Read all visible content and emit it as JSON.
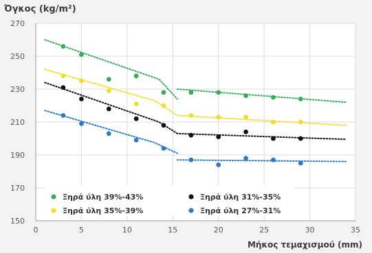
{
  "chart_data": {
    "type": "scatter",
    "title": "Όγκος (kg/m²)",
    "xlabel": "Μήκος τεμαχισμού (mm)",
    "ylabel": "",
    "xlim": [
      0,
      35
    ],
    "ylim": [
      150,
      270
    ],
    "xticks": [
      0,
      5,
      10,
      15,
      20,
      25,
      30,
      35
    ],
    "yticks": [
      150,
      170,
      190,
      210,
      230,
      250,
      270
    ],
    "grid": true,
    "legend": "bottom-left",
    "series": [
      {
        "name": "Ξηρά ύλη 39%-43%",
        "color": "#3aab5a",
        "x": [
          3,
          5,
          8,
          11,
          14,
          17,
          20,
          23,
          26,
          29
        ],
        "y": [
          256,
          251,
          236,
          238,
          228,
          228,
          228,
          226,
          225,
          224
        ],
        "trend": [
          [
            [
              1,
              260
            ],
            [
              13.5,
              236
            ],
            [
              15.5,
              224
            ]
          ],
          [
            [
              15.5,
              230
            ],
            [
              34,
              222
            ]
          ]
        ]
      },
      {
        "name": "Ξηρά ύλη 35%-39%",
        "color": "#f2dd2b",
        "x": [
          3,
          5,
          8,
          11,
          14,
          17,
          20,
          23,
          26,
          29
        ],
        "y": [
          238,
          235,
          229,
          221,
          220,
          214,
          213,
          213,
          210,
          210
        ],
        "trend": [
          [
            [
              1,
              242
            ],
            [
              13,
              223
            ],
            [
              15.5,
              214
            ],
            [
              34,
              208
            ]
          ]
        ]
      },
      {
        "name": "Ξηρά ύλη 31%-35%",
        "color": "#111111",
        "x": [
          3,
          5,
          8,
          11,
          14,
          17,
          20,
          23,
          26,
          29
        ],
        "y": [
          231,
          224,
          218,
          212,
          208,
          202,
          201,
          204,
          200,
          200
        ],
        "trend": [
          [
            [
              1,
              234
            ],
            [
              13.5,
              210
            ],
            [
              15.5,
              203
            ],
            [
              34,
              199.5
            ]
          ]
        ]
      },
      {
        "name": "Ξηρά ύλη 27%-31%",
        "color": "#2b7bc0",
        "x": [
          3,
          5,
          8,
          11,
          14,
          17,
          20,
          23,
          26,
          29
        ],
        "y": [
          214,
          209,
          203,
          199,
          194,
          187,
          184,
          188,
          187,
          185
        ],
        "trend": [
          [
            [
              1,
              217
            ],
            [
              13,
              197.5
            ],
            [
              15.5,
              191
            ]
          ],
          [
            [
              15.5,
              187
            ],
            [
              34,
              186
            ]
          ]
        ]
      }
    ],
    "legend_order": [
      0,
      2,
      1,
      3
    ]
  }
}
